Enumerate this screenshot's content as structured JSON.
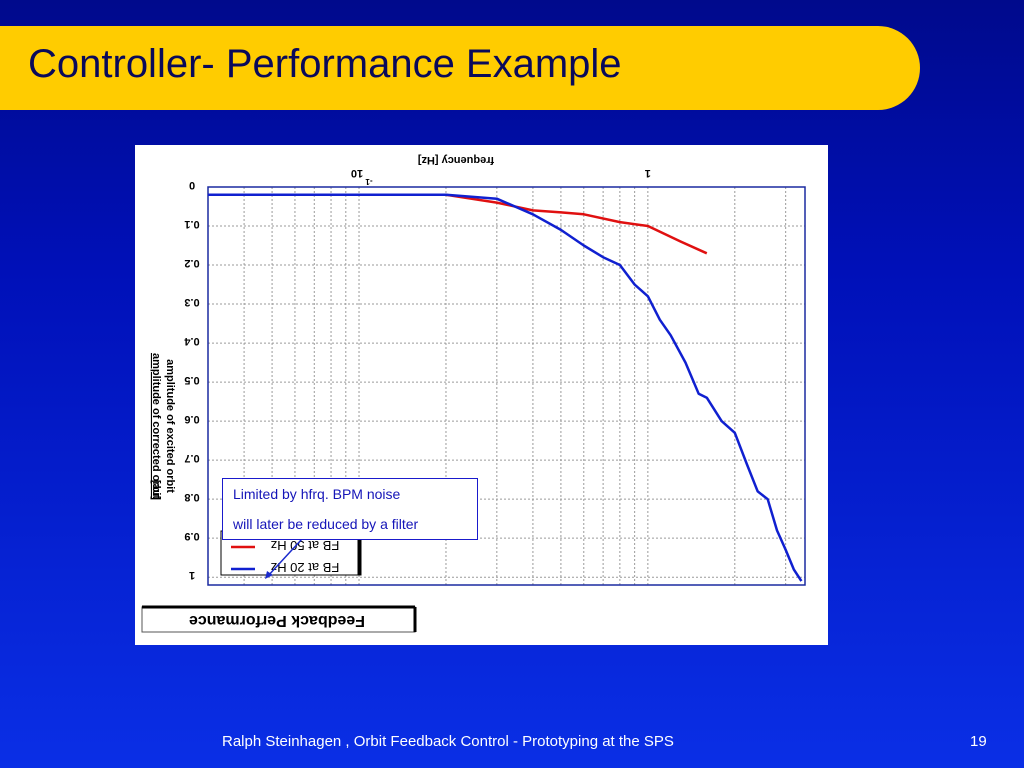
{
  "slide": {
    "title": "Controller- Performance Example",
    "footer": "Ralph Steinhagen , Orbit Feedback Control - Prototyping at the SPS",
    "page_number": "19"
  },
  "annotation": {
    "line1": "Limited by hfrq. BPM noise",
    "line2": "will later be reduced by a filter"
  },
  "chart_data": {
    "type": "line",
    "orientation": "rotated-180 (figure rendered upside-down and mirrored)",
    "title": "Feedback Performance",
    "xlabel": "frequency [Hz]",
    "ylabel_line1": "amplitude of corrected orbit",
    "ylabel_line2": "amplitude of excited orbit",
    "ylabel_unit": "[au]",
    "x_scale": "log",
    "xlim": [
      0.03,
      3.5
    ],
    "ylim": [
      0,
      1.02
    ],
    "x_tick_labels": [
      "10",
      "-1",
      "1"
    ],
    "y_ticks": [
      0,
      0.1,
      0.2,
      0.3,
      0.4,
      0.5,
      0.6,
      0.7,
      0.8,
      0.9,
      1
    ],
    "y_tick_labels": [
      "0",
      "0.1",
      "0.2",
      "0.3",
      "0.4",
      "0.5",
      "0.6",
      "0.7",
      "0.8",
      "0.9",
      "1"
    ],
    "grid": true,
    "legend_position": "bottom-left",
    "series": [
      {
        "name": "FB at 50 Hz",
        "color": "#e01010",
        "x": [
          0.03,
          0.05,
          0.08,
          0.1,
          0.13,
          0.16,
          0.2,
          0.3,
          0.4,
          0.5,
          0.6,
          0.8,
          1.0,
          1.3,
          1.6
        ],
        "y": [
          0.02,
          0.02,
          0.02,
          0.02,
          0.02,
          0.02,
          0.02,
          0.04,
          0.06,
          0.065,
          0.07,
          0.09,
          0.1,
          0.14,
          0.17
        ]
      },
      {
        "name": "FB at 20 Hz",
        "color": "#1020d0",
        "x": [
          0.03,
          0.05,
          0.08,
          0.1,
          0.13,
          0.16,
          0.2,
          0.3,
          0.4,
          0.5,
          0.6,
          0.7,
          0.8,
          0.9,
          1.0,
          1.1,
          1.2,
          1.35,
          1.5,
          1.6,
          1.8,
          2.0,
          2.2,
          2.4,
          2.6,
          2.8,
          3.0,
          3.2,
          3.4
        ],
        "y": [
          0.02,
          0.02,
          0.02,
          0.02,
          0.02,
          0.02,
          0.02,
          0.03,
          0.07,
          0.11,
          0.15,
          0.18,
          0.2,
          0.25,
          0.28,
          0.34,
          0.38,
          0.45,
          0.53,
          0.54,
          0.6,
          0.63,
          0.71,
          0.78,
          0.8,
          0.88,
          0.93,
          0.98,
          1.01
        ]
      }
    ]
  }
}
